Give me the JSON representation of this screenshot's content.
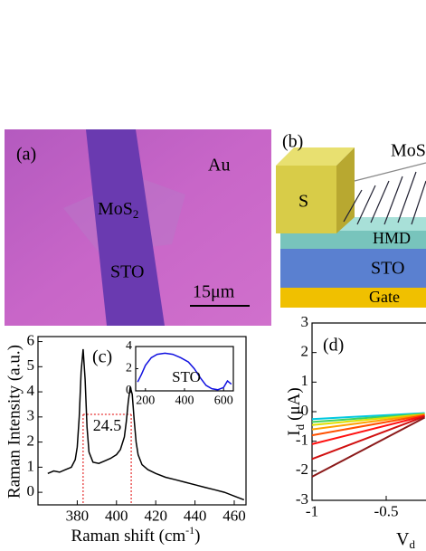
{
  "panel_a": {
    "label": "(a)",
    "au": "Au",
    "mos2": "MoS",
    "mos2_sub": "2",
    "sto": "STO",
    "scale": "15μm"
  },
  "panel_b": {
    "label": "(b)",
    "mos2": "MoS",
    "source": "S",
    "hmd": "HMD",
    "sto": "STO",
    "gate": "Gate"
  },
  "chart_data": [
    {
      "type": "line",
      "label": "(c)",
      "y_label": "Raman Intensity (a.u.)",
      "x_label": "Raman shift (cm",
      "x_label_sup": "-1",
      "x_label_end": ")",
      "x": [
        365,
        368,
        371,
        374,
        377,
        379,
        380,
        381,
        382,
        383,
        384,
        385,
        386,
        388,
        391,
        394,
        397,
        400,
        402,
        404,
        405,
        406,
        407,
        408,
        409,
        410,
        411,
        413,
        416,
        420,
        425,
        430,
        435,
        440,
        445,
        450,
        455,
        460,
        465
      ],
      "values": [
        0.75,
        0.85,
        0.8,
        0.9,
        1.0,
        1.3,
        1.8,
        3.0,
        4.8,
        5.7,
        4.5,
        2.6,
        1.6,
        1.2,
        1.15,
        1.25,
        1.35,
        1.5,
        1.7,
        2.2,
        2.8,
        3.6,
        4.2,
        3.9,
        2.9,
        2.0,
        1.5,
        1.1,
        0.9,
        0.75,
        0.6,
        0.5,
        0.4,
        0.3,
        0.2,
        0.1,
        0.0,
        -0.15,
        -0.3
      ],
      "color": "#000000",
      "xlim": [
        360,
        466
      ],
      "ylim": [
        -0.5,
        6.2
      ],
      "xticks": [
        380,
        400,
        420,
        440,
        460
      ],
      "yticks": [
        0,
        1,
        2,
        3,
        4,
        5,
        6
      ],
      "annotation": {
        "text": "24.5",
        "x1": 383,
        "x2": 407.5,
        "y": 3.1,
        "color": "#e00000"
      }
    },
    {
      "type": "line",
      "label": "STO",
      "x": [
        160,
        180,
        200,
        230,
        260,
        300,
        340,
        380,
        420,
        450,
        480,
        510,
        540,
        570,
        600,
        620,
        640
      ],
      "values": [
        0.8,
        1.5,
        2.3,
        3.0,
        3.3,
        3.4,
        3.3,
        3.0,
        2.6,
        2.0,
        1.2,
        0.5,
        0.2,
        0.1,
        0.3,
        0.9,
        0.6
      ],
      "color": "#1010e0",
      "xlim": [
        150,
        650
      ],
      "ylim": [
        0,
        4
      ],
      "xticks": [
        200,
        400,
        600
      ],
      "yticks": [
        0,
        2,
        4
      ]
    },
    {
      "type": "line",
      "label": "(d)",
      "y_label": "I",
      "y_label_sub": "d",
      "y_label_unit": "(μA)",
      "x_label": "V",
      "x_label_sub": "d",
      "x": [
        -1.0,
        -0.24
      ],
      "series": [
        {
          "color": "#00c8e0",
          "values": [
            -0.25,
            -0.05
          ]
        },
        {
          "color": "#40d060",
          "values": [
            -0.35,
            -0.07
          ]
        },
        {
          "color": "#e0e000",
          "values": [
            -0.45,
            -0.09
          ]
        },
        {
          "color": "#ffa000",
          "values": [
            -0.6,
            -0.1
          ]
        },
        {
          "color": "#ff5000",
          "values": [
            -0.8,
            -0.12
          ]
        },
        {
          "color": "#ff1010",
          "values": [
            -1.1,
            -0.14
          ]
        },
        {
          "color": "#d01010",
          "values": [
            -1.6,
            -0.16
          ]
        },
        {
          "color": "#8b1a1a",
          "values": [
            -2.2,
            -0.2
          ]
        }
      ],
      "xlim": [
        -1.0,
        0.0
      ],
      "ylim": [
        -3,
        3
      ],
      "xticks": [
        -1.0,
        -0.5
      ],
      "yticks": [
        -3,
        -2,
        -1,
        0,
        1,
        2,
        3
      ]
    }
  ]
}
